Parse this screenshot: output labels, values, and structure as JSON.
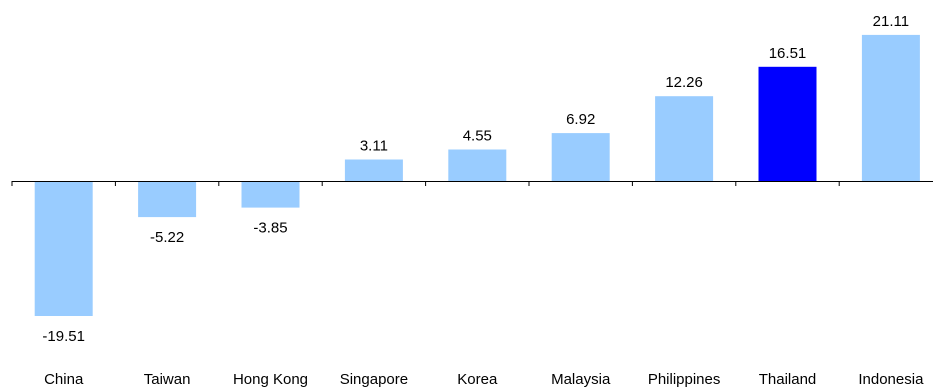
{
  "chart_data": {
    "type": "bar",
    "categories": [
      "China",
      "Taiwan",
      "Hong Kong",
      "Singapore",
      "Korea",
      "Malaysia",
      "Philippines",
      "Thailand",
      "Indonesia"
    ],
    "values": [
      -19.51,
      -5.22,
      -3.85,
      3.11,
      4.55,
      6.92,
      12.26,
      16.51,
      21.11
    ],
    "value_labels": [
      "-19.51",
      "-5.22",
      "-3.85",
      "3.11",
      "4.55",
      "6.92",
      "12.26",
      "16.51",
      "21.11"
    ],
    "highlight_category": "Thailand",
    "colors": {
      "bar": "#99ccff",
      "highlight": "#0000ff",
      "axis": "#000000"
    },
    "ylim": [
      -20,
      21.11
    ],
    "grid": false,
    "legend": "none",
    "title": "",
    "xlabel": "",
    "ylabel": ""
  }
}
